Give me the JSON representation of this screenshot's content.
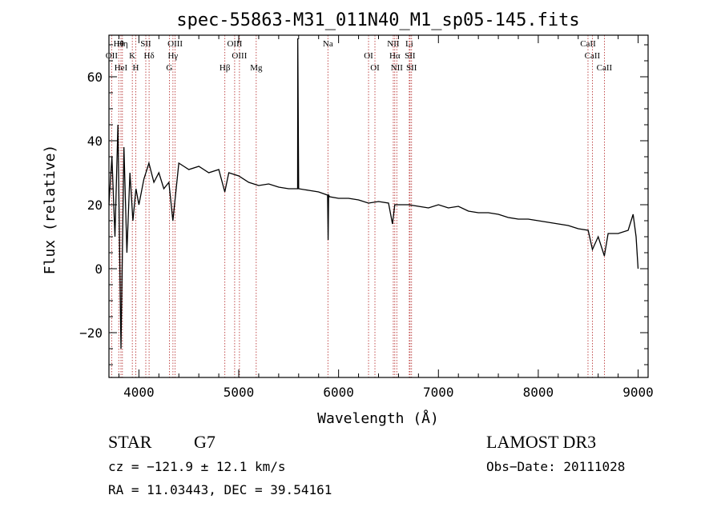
{
  "chart_data": {
    "type": "line",
    "title": "spec-55863-M31_011N40_M1_sp05-145.fits",
    "xlabel": "Wavelength (Å)",
    "ylabel": "Flux (relative)",
    "xlim": [
      3700,
      9100
    ],
    "ylim": [
      -34,
      73
    ],
    "xticks": [
      4000,
      5000,
      6000,
      7000,
      8000,
      9000
    ],
    "xtick_labels": [
      "4000",
      "5000",
      "6000",
      "7000",
      "8000",
      "9000"
    ],
    "yticks": [
      -20,
      0,
      20,
      40,
      60
    ],
    "ytick_labels": [
      "−20",
      "0",
      "20",
      "40",
      "60"
    ],
    "series": [
      {
        "name": "flux",
        "x": [
          3700,
          3730,
          3760,
          3790,
          3820,
          3850,
          3880,
          3910,
          3940,
          3970,
          4000,
          4050,
          4100,
          4150,
          4200,
          4250,
          4300,
          4340,
          4400,
          4450,
          4500,
          4600,
          4700,
          4800,
          4860,
          4900,
          5000,
          5100,
          5200,
          5300,
          5400,
          5500,
          5590,
          5591,
          5600,
          5700,
          5800,
          5890,
          5895,
          5900,
          5910,
          6000,
          6100,
          6200,
          6300,
          6400,
          6500,
          6540,
          6563,
          6600,
          6700,
          6800,
          6900,
          7000,
          7100,
          7200,
          7300,
          7400,
          7500,
          7600,
          7700,
          7800,
          7900,
          8000,
          8100,
          8200,
          8300,
          8400,
          8500,
          8542,
          8600,
          8662,
          8700,
          8800,
          8900,
          8950,
          8980,
          9000
        ],
        "y": [
          20,
          35,
          10,
          45,
          -25,
          38,
          5,
          30,
          15,
          25,
          20,
          28,
          33,
          27,
          30,
          25,
          27,
          15,
          33,
          32,
          31,
          32,
          30,
          31,
          24,
          30,
          29,
          27,
          26,
          26.5,
          25.5,
          25,
          25,
          72,
          25,
          24.5,
          24,
          23,
          9,
          23,
          22.5,
          22,
          22,
          21.5,
          20.5,
          21,
          20.5,
          14,
          20,
          20,
          20,
          19.5,
          19,
          20,
          19,
          19.5,
          18,
          17.5,
          17.5,
          17,
          16,
          15.5,
          15.5,
          15,
          14.5,
          14,
          13.5,
          12.5,
          12,
          6,
          10,
          4,
          11,
          11,
          12,
          17,
          10,
          0
        ]
      }
    ],
    "lines": [
      {
        "label": "Hθ",
        "x": 3798
      },
      {
        "label": "OII",
        "x": 3727
      },
      {
        "label": "HeI",
        "x": 3820
      },
      {
        "label": "Hη",
        "x": 3835
      },
      {
        "label": "K",
        "x": 3934
      },
      {
        "label": "H",
        "x": 3969
      },
      {
        "label": "SII",
        "x": 4069
      },
      {
        "label": "Hδ",
        "x": 4102
      },
      {
        "label": "G",
        "x": 4305
      },
      {
        "label": "OIII",
        "x": 4363
      },
      {
        "label": "Hγ",
        "x": 4341
      },
      {
        "label": "Hβ",
        "x": 4861
      },
      {
        "label": "OIII",
        "x": 4959
      },
      {
        "label": "OIII",
        "x": 5007
      },
      {
        "label": "Mg",
        "x": 5175
      },
      {
        "label": "Na",
        "x": 5893
      },
      {
        "label": "OI",
        "x": 6300
      },
      {
        "label": "OI",
        "x": 6364
      },
      {
        "label": "NII",
        "x": 6548
      },
      {
        "label": "Hα",
        "x": 6563
      },
      {
        "label": "NII",
        "x": 6583
      },
      {
        "label": "Li",
        "x": 6708
      },
      {
        "label": "SII",
        "x": 6716
      },
      {
        "label": "SII",
        "x": 6731
      },
      {
        "label": "CaII",
        "x": 8498
      },
      {
        "label": "CaII",
        "x": 8542
      },
      {
        "label": "CaII",
        "x": 8662
      }
    ]
  },
  "info": {
    "class": "STAR",
    "subclass": "G7",
    "survey": "LAMOST DR3",
    "cz": "cz = −121.9 ± 12.1 km/s",
    "obs_date": "Obs−Date: 20111028",
    "radec": "RA =  11.03443, DEC =  39.54161"
  },
  "colors": {
    "axis": "#000000",
    "line": "#000000",
    "marker": "#b22222"
  }
}
